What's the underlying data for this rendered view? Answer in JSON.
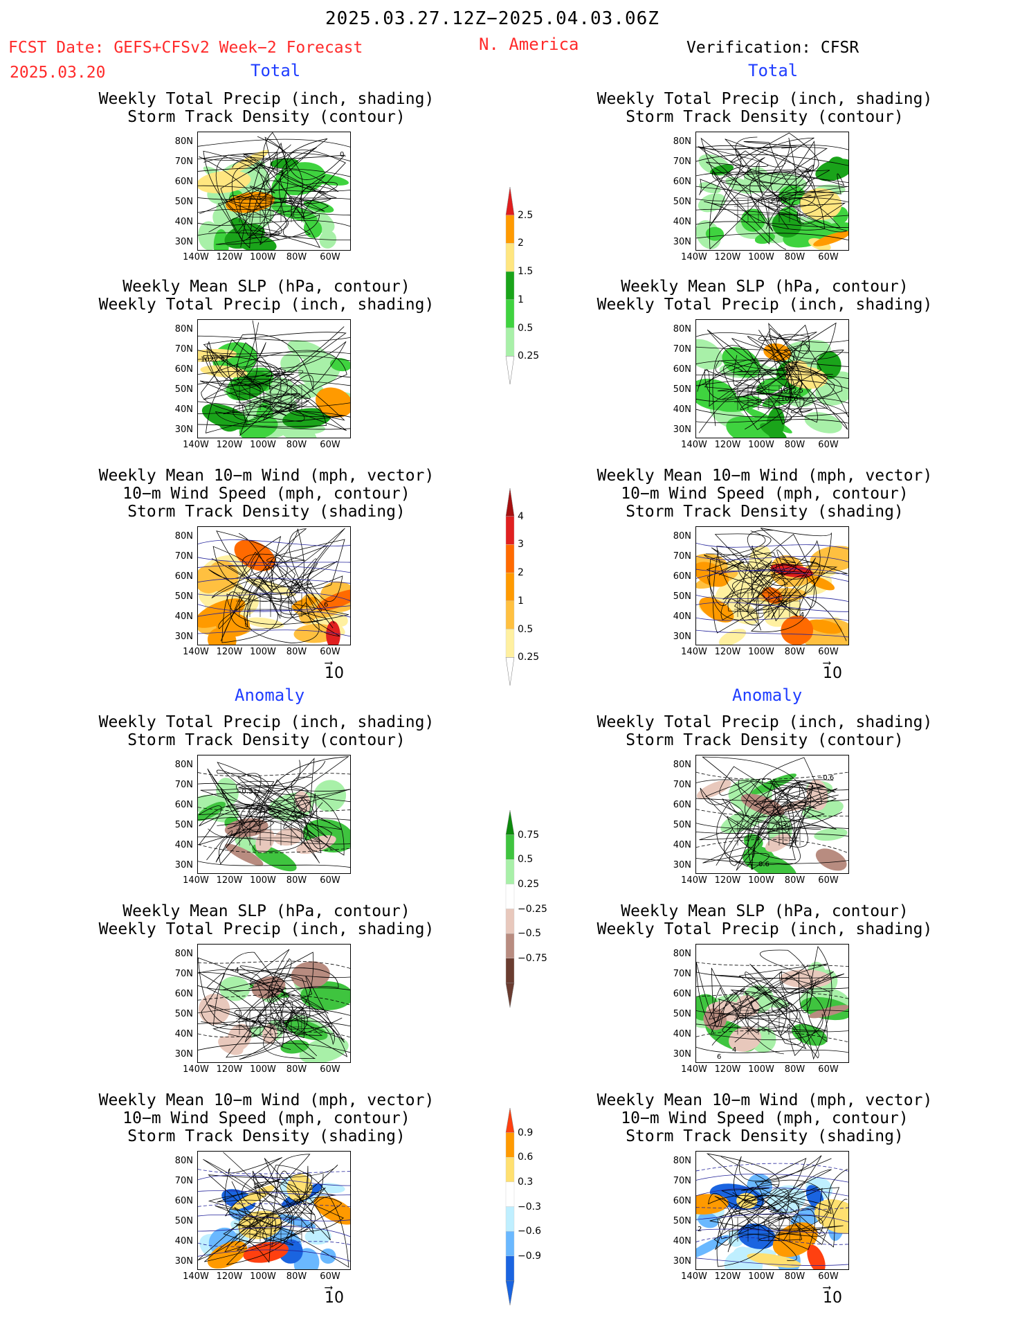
{
  "header": {
    "period": "2025.03.27.12Z−2025.04.03.06Z",
    "forecast_label": "FCST Date: GEFS+CFSv2 Week−2 Forecast",
    "forecast_date": "2025.03.20",
    "region": "N. America",
    "verification_label": "Verification: CFSR"
  },
  "sections": {
    "total": "Total",
    "anomaly": "Anomaly"
  },
  "panel_titles": {
    "precip_storm": [
      "Weekly Total Precip (inch, shading)",
      "Storm Track Density (contour)"
    ],
    "slp_precip": [
      "Weekly Mean SLP (hPa, contour)",
      "Weekly Total Precip (inch, shading)"
    ],
    "wind_storm": [
      "Weekly Mean 10−m Wind (mph, vector)",
      "10−m Wind Speed (mph, contour)",
      "Storm Track Density (shading)"
    ]
  },
  "axes": {
    "lat_ticks": [
      "80N",
      "70N",
      "60N",
      "50N",
      "40N",
      "30N"
    ],
    "lon_ticks": [
      "140W",
      "120W",
      "100W",
      "80W",
      "60W"
    ]
  },
  "vector_scale": "10",
  "colorbars": {
    "precip_total": {
      "labels": [
        "2.5",
        "2",
        "1.5",
        "1",
        "0.5",
        "0.25"
      ],
      "colors": [
        "#e01e1e",
        "#ff9a00",
        "#ffe680",
        "#1aa41a",
        "#3fd33f",
        "#a8f0a8"
      ]
    },
    "storm_total": {
      "labels": [
        "4",
        "3",
        "2",
        "1",
        "0.5",
        "0.25"
      ],
      "colors": [
        "#a50f0f",
        "#e02020",
        "#ff6a00",
        "#ff9a00",
        "#ffc040",
        "#fff0a0"
      ]
    },
    "precip_anom": {
      "labels": [
        "0.75",
        "0.5",
        "0.25",
        "−0.25",
        "−0.5",
        "−0.75"
      ],
      "colors": [
        "#0c8a0c",
        "#3fc43f",
        "#a8f0a8",
        "#ffffff",
        "#e8c8bc",
        "#b88c80",
        "#6a3c30"
      ]
    },
    "storm_anom": {
      "labels": [
        "0.9",
        "0.6",
        "0.3",
        "−0.3",
        "−0.6",
        "−0.9"
      ],
      "colors": [
        "#ff4010",
        "#ff9a00",
        "#ffe070",
        "#ffffff",
        "#bfefff",
        "#6ab8ff",
        "#1a64e0"
      ]
    }
  },
  "contour_labels": {
    "fcst_precip_storm": "0.",
    "obs_precip_storm": "0.5",
    "fcst_slp": "1022.5",
    "obs_slp": [
      "1022.5",
      "1020"
    ],
    "fcst_wind": "6",
    "obs_wind": "4",
    "fcst_anom_storm": "−0.3",
    "obs_anom_storm": [
      "−0.6",
      "0.3",
      "0.6"
    ],
    "fcst_anom_slp": "−4",
    "obs_anom_slp": [
      "4",
      "6"
    ],
    "fcst_anom_wind": "2",
    "obs_anom_wind": "2"
  }
}
